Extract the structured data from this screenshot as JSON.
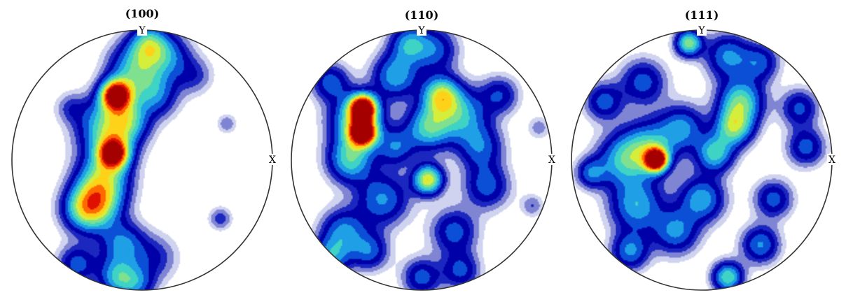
{
  "chart_data": {
    "type": "heatmap",
    "subtype": "pole-figure",
    "projection": "stereographic",
    "colormap": "jet",
    "colormap_stops": [
      "#ffffff",
      "#d0d3ef",
      "#7f85d2",
      "#1c27c0",
      "#0000a8",
      "#0b4fd6",
      "#1f9fe6",
      "#3fd3c5",
      "#7fe08f",
      "#d5ee3c",
      "#ffd21a",
      "#ff6a00",
      "#e01000",
      "#a40000"
    ],
    "axis_labels": {
      "north": "Y",
      "east": "X"
    },
    "panels": [
      {
        "title": "(100)",
        "blobs": [
          {
            "x": -0.2,
            "y": 0.5,
            "v": 1.0,
            "s": 0.08
          },
          {
            "x": -0.22,
            "y": 0.05,
            "v": 0.85,
            "s": 0.08
          },
          {
            "x": -0.25,
            "y": 0.25,
            "v": 0.55,
            "s": 0.16
          },
          {
            "x": -0.3,
            "y": -0.15,
            "v": 0.5,
            "s": 0.14
          },
          {
            "x": -0.35,
            "y": -0.35,
            "v": 0.45,
            "s": 0.13
          },
          {
            "x": -0.45,
            "y": -0.38,
            "v": 0.35,
            "s": 0.12
          },
          {
            "x": -0.05,
            "y": 0.7,
            "v": 0.45,
            "s": 0.14
          },
          {
            "x": 0.05,
            "y": 0.9,
            "v": 0.4,
            "s": 0.1
          },
          {
            "x": 0.2,
            "y": 0.8,
            "v": 0.3,
            "s": 0.12
          },
          {
            "x": 0.1,
            "y": 0.5,
            "v": 0.3,
            "s": 0.12
          },
          {
            "x": -0.15,
            "y": -0.65,
            "v": 0.35,
            "s": 0.12
          },
          {
            "x": -0.2,
            "y": -0.9,
            "v": 0.35,
            "s": 0.1
          },
          {
            "x": -0.05,
            "y": -0.95,
            "v": 0.3,
            "s": 0.1
          },
          {
            "x": -0.5,
            "y": -0.8,
            "v": 0.3,
            "s": 0.1
          },
          {
            "x": 0.1,
            "y": -0.75,
            "v": 0.18,
            "s": 0.12
          },
          {
            "x": 0.6,
            "y": -0.45,
            "v": 0.18,
            "s": 0.06
          },
          {
            "x": 0.65,
            "y": 0.28,
            "v": 0.14,
            "s": 0.05
          },
          {
            "x": -0.55,
            "y": 0.4,
            "v": 0.14,
            "s": 0.08
          },
          {
            "x": 0.4,
            "y": 0.65,
            "v": 0.16,
            "s": 0.1
          },
          {
            "x": -0.1,
            "y": 0.3,
            "v": 0.25,
            "s": 0.1
          }
        ]
      },
      {
        "title": "(110)",
        "blobs": [
          {
            "x": -0.45,
            "y": 0.4,
            "v": 1.0,
            "s": 0.07
          },
          {
            "x": -0.45,
            "y": 0.21,
            "v": 0.95,
            "s": 0.07
          },
          {
            "x": -0.5,
            "y": 0.3,
            "v": 0.5,
            "s": 0.14
          },
          {
            "x": -0.55,
            "y": 0.0,
            "v": 0.45,
            "s": 0.12
          },
          {
            "x": 0.15,
            "y": 0.5,
            "v": 0.55,
            "s": 0.1
          },
          {
            "x": 0.05,
            "y": 0.25,
            "v": 0.45,
            "s": 0.12
          },
          {
            "x": 0.3,
            "y": 0.35,
            "v": 0.4,
            "s": 0.14
          },
          {
            "x": 0.05,
            "y": -0.15,
            "v": 0.65,
            "s": 0.08
          },
          {
            "x": -0.2,
            "y": 0.65,
            "v": 0.4,
            "s": 0.12
          },
          {
            "x": -0.1,
            "y": 0.9,
            "v": 0.35,
            "s": 0.1
          },
          {
            "x": 0.1,
            "y": 0.85,
            "v": 0.3,
            "s": 0.12
          },
          {
            "x": -0.7,
            "y": 0.6,
            "v": 0.3,
            "s": 0.1
          },
          {
            "x": -0.3,
            "y": -0.3,
            "v": 0.35,
            "s": 0.14
          },
          {
            "x": -0.6,
            "y": -0.55,
            "v": 0.35,
            "s": 0.12
          },
          {
            "x": -0.7,
            "y": -0.75,
            "v": 0.35,
            "s": 0.1
          },
          {
            "x": -0.4,
            "y": -0.7,
            "v": 0.3,
            "s": 0.1
          },
          {
            "x": 0.25,
            "y": -0.55,
            "v": 0.3,
            "s": 0.12
          },
          {
            "x": 0.0,
            "y": -0.9,
            "v": 0.3,
            "s": 0.1
          },
          {
            "x": 0.3,
            "y": -0.85,
            "v": 0.28,
            "s": 0.1
          },
          {
            "x": 0.5,
            "y": -0.2,
            "v": 0.3,
            "s": 0.12
          },
          {
            "x": 0.45,
            "y": 0.1,
            "v": 0.3,
            "s": 0.12
          },
          {
            "x": 0.6,
            "y": 0.5,
            "v": 0.25,
            "s": 0.1
          },
          {
            "x": -0.2,
            "y": 0.1,
            "v": 0.3,
            "s": 0.1
          },
          {
            "x": 0.85,
            "y": -0.35,
            "v": 0.14,
            "s": 0.06
          },
          {
            "x": 0.9,
            "y": 0.25,
            "v": 0.12,
            "s": 0.06
          }
        ]
      },
      {
        "title": "(111)",
        "blobs": [
          {
            "x": -0.35,
            "y": 0.0,
            "v": 1.0,
            "s": 0.06
          },
          {
            "x": -0.4,
            "y": 0.1,
            "v": 0.4,
            "s": 0.14
          },
          {
            "x": -0.6,
            "y": 0.0,
            "v": 0.4,
            "s": 0.14
          },
          {
            "x": -0.5,
            "y": -0.35,
            "v": 0.4,
            "s": 0.14
          },
          {
            "x": -0.15,
            "y": 0.25,
            "v": 0.35,
            "s": 0.12
          },
          {
            "x": -0.1,
            "y": 0.9,
            "v": 0.55,
            "s": 0.07
          },
          {
            "x": 0.2,
            "y": 0.8,
            "v": 0.35,
            "s": 0.12
          },
          {
            "x": 0.3,
            "y": 0.45,
            "v": 0.5,
            "s": 0.12
          },
          {
            "x": 0.25,
            "y": 0.25,
            "v": 0.5,
            "s": 0.1
          },
          {
            "x": 0.1,
            "y": 0.05,
            "v": 0.45,
            "s": 0.1
          },
          {
            "x": 0.0,
            "y": -0.3,
            "v": 0.4,
            "s": 0.12
          },
          {
            "x": -0.2,
            "y": -0.55,
            "v": 0.35,
            "s": 0.12
          },
          {
            "x": -0.55,
            "y": -0.7,
            "v": 0.35,
            "s": 0.1
          },
          {
            "x": 0.2,
            "y": -0.9,
            "v": 0.5,
            "s": 0.08
          },
          {
            "x": 0.45,
            "y": -0.65,
            "v": 0.35,
            "s": 0.1
          },
          {
            "x": 0.55,
            "y": -0.3,
            "v": 0.3,
            "s": 0.1
          },
          {
            "x": 0.8,
            "y": 0.1,
            "v": 0.3,
            "s": 0.1
          },
          {
            "x": 0.75,
            "y": 0.4,
            "v": 0.28,
            "s": 0.1
          },
          {
            "x": -0.75,
            "y": 0.45,
            "v": 0.3,
            "s": 0.1
          },
          {
            "x": -0.45,
            "y": 0.6,
            "v": 0.3,
            "s": 0.12
          },
          {
            "x": -0.85,
            "y": -0.1,
            "v": 0.3,
            "s": 0.08
          },
          {
            "x": 0.45,
            "y": 0.75,
            "v": 0.28,
            "s": 0.1
          }
        ]
      }
    ]
  }
}
